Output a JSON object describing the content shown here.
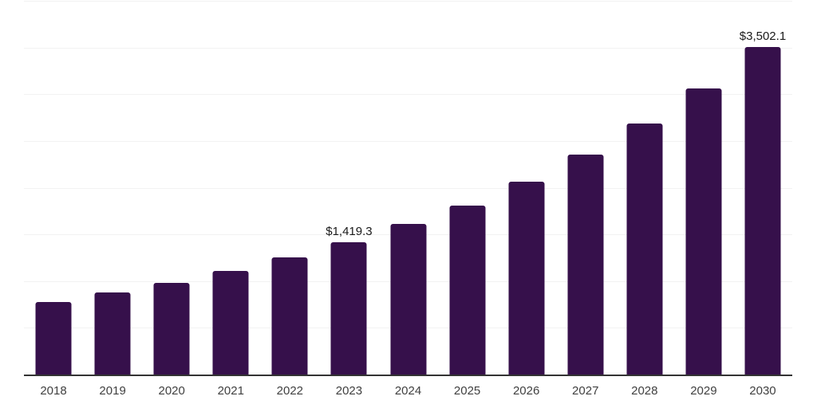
{
  "chart_data": {
    "type": "bar",
    "title": "",
    "xlabel": "",
    "ylabel": "",
    "categories": [
      "2018",
      "2019",
      "2020",
      "2021",
      "2022",
      "2023",
      "2024",
      "2025",
      "2026",
      "2027",
      "2028",
      "2029",
      "2030"
    ],
    "values": [
      780,
      875,
      985,
      1105,
      1250,
      1419.3,
      1610,
      1812,
      2067,
      2352,
      2685,
      3060,
      3502.1
    ],
    "value_labels": [
      "",
      "",
      "",
      "",
      "",
      "$1,419.3",
      "",
      "",
      "",
      "",
      "",
      "",
      "$3,502.1"
    ],
    "ylim": [
      0,
      4000
    ],
    "gridline_step": 500,
    "grid": "horizontal",
    "legend_position": "none",
    "colors": {
      "bar": "#36104b",
      "axis_line": "#333333",
      "gridline": "#f2f2f2",
      "value_label": "#1a1a1a",
      "tick_label": "#404040",
      "background": "#ffffff"
    }
  }
}
